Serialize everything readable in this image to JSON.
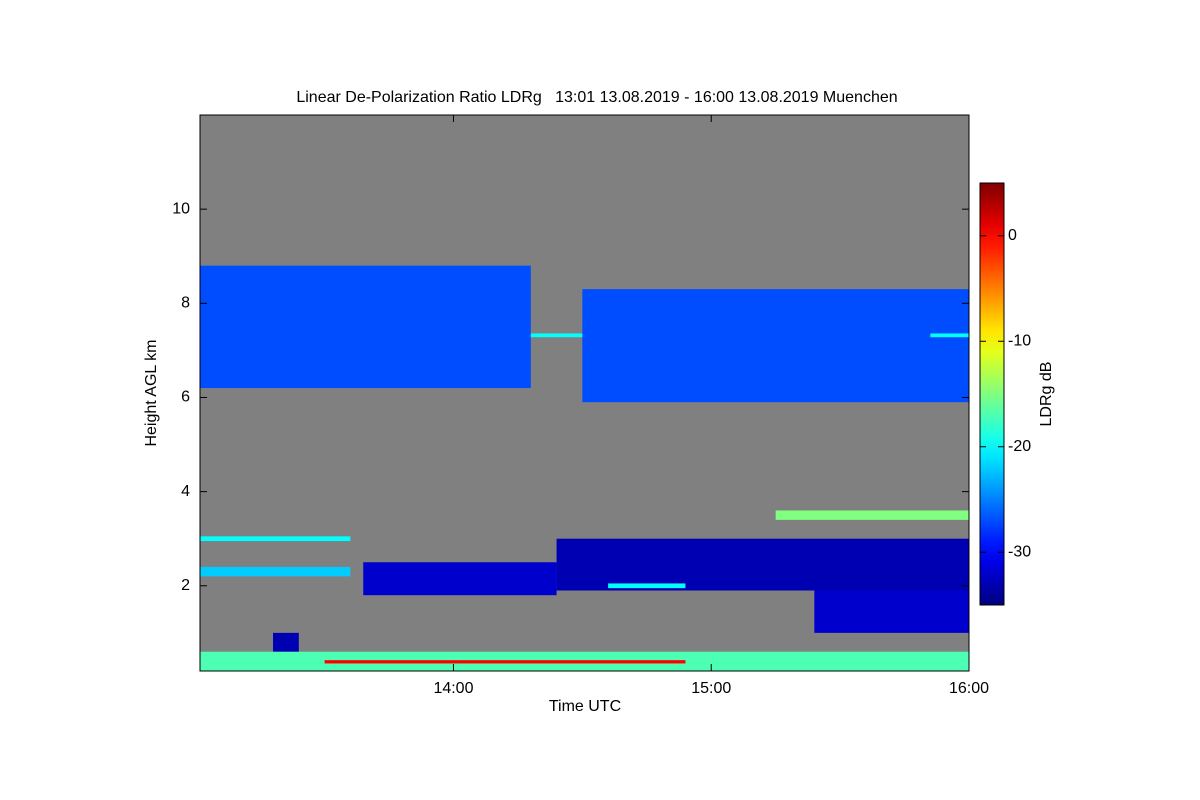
{
  "chart_data": {
    "type": "heatmap",
    "title": "Linear De-Polarization Ratio LDRg   13:01 13.08.2019 - 16:00 13.08.2019 Muenchen",
    "x_label": "Time UTC",
    "y_label": "Height AGL km",
    "xlim": [
      13.0167,
      16.0
    ],
    "xticks": [
      {
        "value": 14,
        "label": "14:00"
      },
      {
        "value": 15,
        "label": "15:00"
      },
      {
        "value": 16,
        "label": "16:00"
      }
    ],
    "ylim": [
      0.19,
      12
    ],
    "yticks": [
      2,
      4,
      6,
      8,
      10
    ],
    "background": "#808080",
    "colormap": "jet",
    "colorbar": {
      "label": "LDRg dB",
      "lim": [
        -35,
        5
      ],
      "ticks": [
        0,
        -10,
        -20,
        -30
      ]
    },
    "regions": [
      {
        "x": [
          13.0167,
          14.3
        ],
        "y": [
          6.2,
          8.8
        ],
        "value": -27
      },
      {
        "x": [
          14.5,
          16.0
        ],
        "y": [
          5.9,
          8.3
        ],
        "value": -27
      },
      {
        "x": [
          14.3,
          14.5
        ],
        "y": [
          7.28,
          7.36
        ],
        "value": -20
      },
      {
        "x": [
          15.85,
          16.0
        ],
        "y": [
          7.28,
          7.36
        ],
        "value": -20
      },
      {
        "x": [
          13.65,
          14.4
        ],
        "y": [
          1.8,
          2.5
        ],
        "value": -32
      },
      {
        "x": [
          14.4,
          16.0
        ],
        "y": [
          1.9,
          3.0
        ],
        "value": -33
      },
      {
        "x": [
          15.4,
          16.0
        ],
        "y": [
          1.0,
          1.9
        ],
        "value": -32
      },
      {
        "x": [
          13.0167,
          13.6
        ],
        "y": [
          2.95,
          3.05
        ],
        "value": -20
      },
      {
        "x": [
          13.0167,
          13.6
        ],
        "y": [
          2.2,
          2.4
        ],
        "value": -22
      },
      {
        "x": [
          15.25,
          16.0
        ],
        "y": [
          3.4,
          3.6
        ],
        "value": -15
      },
      {
        "x": [
          14.6,
          14.9
        ],
        "y": [
          1.95,
          2.05
        ],
        "value": -20
      },
      {
        "x": [
          13.3,
          13.4
        ],
        "y": [
          0.3,
          1.0
        ],
        "value": -33
      },
      {
        "x": [
          13.0167,
          16.0
        ],
        "y": [
          0.19,
          0.6
        ],
        "value": -17
      },
      {
        "x": [
          13.5,
          14.9
        ],
        "y": [
          0.35,
          0.42
        ],
        "value": 0
      }
    ]
  }
}
